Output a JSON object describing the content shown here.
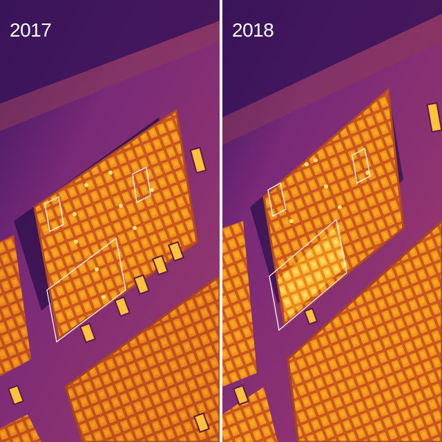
{
  "panels": [
    {
      "label": "2017"
    },
    {
      "label": "2018"
    }
  ],
  "colors": {
    "background_dark": "#2a0f4a",
    "ground_purple": "#6a2070",
    "ground_magenta": "#9a3070",
    "panel_frame": "#c75a2a",
    "cell_warm": "#e88a1a",
    "cell_hot": "#ffc83a",
    "highlight_box": "#ffffff"
  }
}
